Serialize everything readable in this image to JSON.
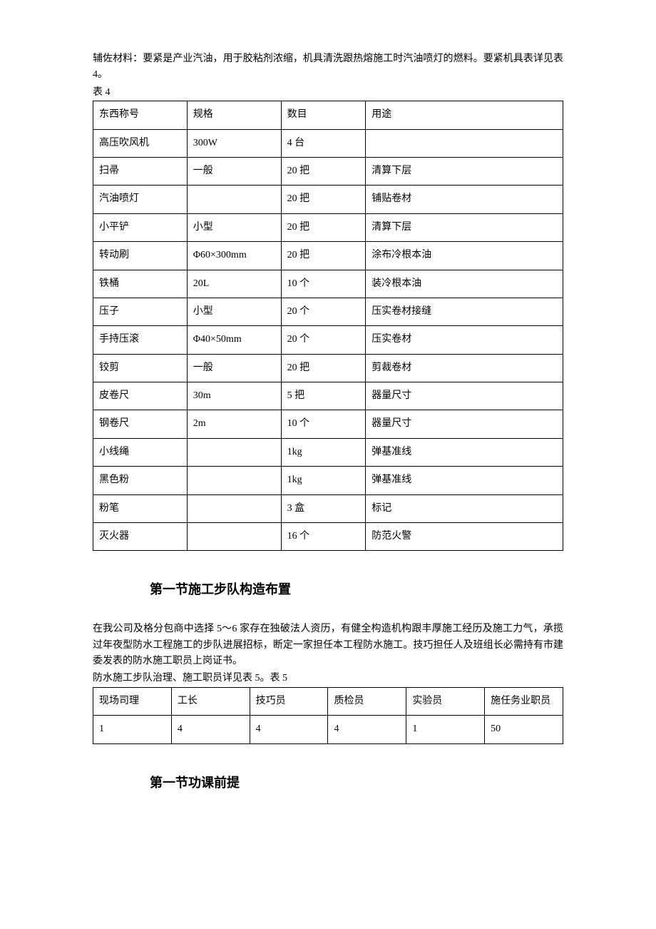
{
  "intro_para": "辅佐材料：要紧是产业汽油，用于胶粘剂浓缩，机具清洗跟热熔施工时汽油喷灯的燃料。要紧机具表详见表 4。",
  "table4_label": "表 4",
  "table4": {
    "headers": [
      "东西称号",
      "规格",
      "数目",
      "用途"
    ],
    "rows": [
      [
        "高压吹风机",
        "300W",
        "4 台",
        ""
      ],
      [
        "扫帚",
        "一般",
        "20 把",
        "清算下层"
      ],
      [
        "汽油喷灯",
        "",
        "20 把",
        "铺贴卷材"
      ],
      [
        "小平铲",
        "小型",
        "20 把",
        "清算下层"
      ],
      [
        "转动刷",
        "Φ60×300mm",
        "20 把",
        "涂布冷根本油"
      ],
      [
        "铁桶",
        "20L",
        "10 个",
        "装冷根本油"
      ],
      [
        "压子",
        "小型",
        "20 个",
        "压实卷材接缝"
      ],
      [
        "手持压滚",
        "Φ40×50mm",
        "20 个",
        "压实卷材"
      ],
      [
        "铰剪",
        "一般",
        "20 把",
        "剪裁卷材"
      ],
      [
        "皮卷尺",
        "30m",
        "5 把",
        "器量尺寸"
      ],
      [
        "钢卷尺",
        "2m",
        "10 个",
        "器量尺寸"
      ],
      [
        "小线绳",
        "",
        "1kg",
        "弹基准线"
      ],
      [
        "黑色粉",
        "",
        "1kg",
        "弹基准线"
      ],
      [
        "粉笔",
        "",
        "3 盒",
        "标记"
      ],
      [
        "灭火器",
        "",
        "16 个",
        "防范火警"
      ]
    ]
  },
  "heading1": "第一节施工步队构造布置",
  "para2": "在我公司及格分包商中选择 5～6 家存在独破法人资历，有健全构造机构跟丰厚施工经历及施工力气，承揽过年夜型防水工程施工的步队进展招标，断定一家担任本工程防水施工。技巧担任人及班组长必需持有市建委发表的防水施工职员上岗证书。",
  "table5_label": "防水施工步队治理、施工职员详见表 5。表 5",
  "table5": {
    "headers": [
      "现场司理",
      "工长",
      "技巧员",
      "质检员",
      "实验员",
      "施任务业职员"
    ],
    "rows": [
      [
        "1",
        "4",
        "4",
        "4",
        "1",
        "50"
      ]
    ]
  },
  "heading2": "第一节功课前提"
}
